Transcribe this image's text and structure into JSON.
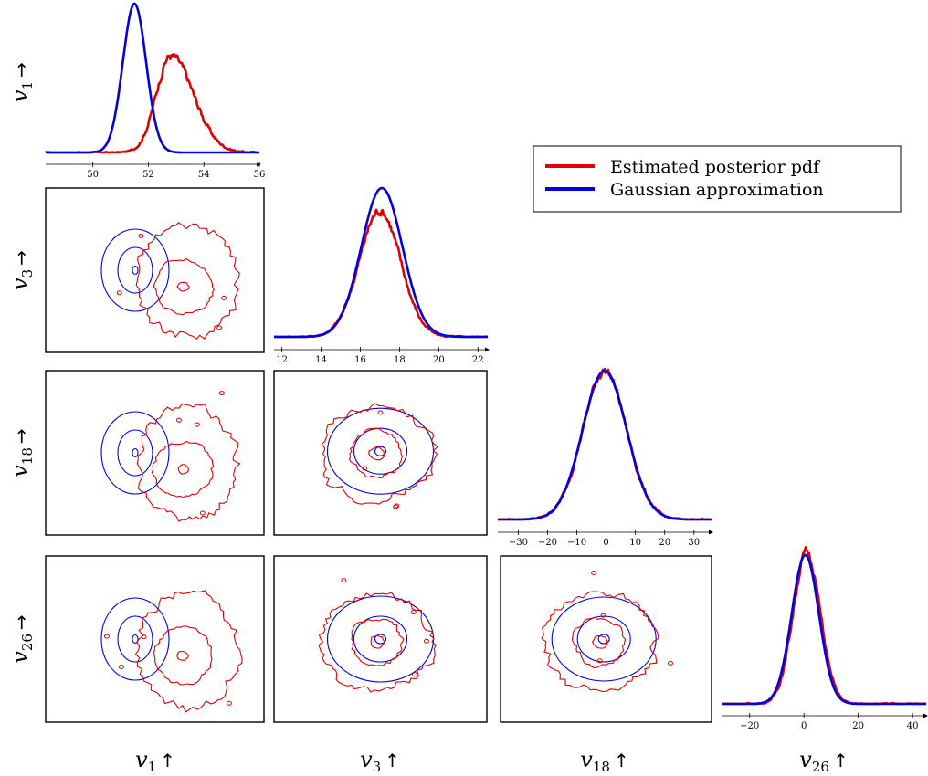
{
  "colors": {
    "estimated": "#e00000",
    "gaussian": "#0000e0",
    "axis": "#000000"
  },
  "legend": {
    "placement": "upper-right",
    "entries": [
      {
        "label": "Estimated posterior pdf",
        "color": "#e00000"
      },
      {
        "label": "Gaussian approximation",
        "color": "#0000e0"
      }
    ]
  },
  "chart_data": {
    "type": "corner-plot",
    "variables": [
      {
        "main": "v",
        "sub": "1",
        "arrow": "↑",
        "arrow_row": "→"
      },
      {
        "main": "v",
        "sub": "3",
        "arrow": "↑",
        "arrow_row": "→"
      },
      {
        "main": "v",
        "sub": "18",
        "arrow": "↑",
        "arrow_row": "→"
      },
      {
        "main": "v",
        "sub": "26",
        "arrow": "↑",
        "arrow_row": "→"
      }
    ],
    "marginals": [
      {
        "variable": "v1",
        "xlim": [
          48.3,
          56
        ],
        "ticks": [
          50,
          52,
          54,
          56
        ],
        "gaussian": {
          "mean": 51.5,
          "sd": 0.42
        },
        "estimated_mode": 52.8,
        "estimated_spread": [
          50.8,
          55.6
        ]
      },
      {
        "variable": "v3",
        "xlim": [
          11.6,
          22.5
        ],
        "ticks": [
          12,
          14,
          16,
          18,
          20,
          22
        ],
        "gaussian": {
          "mean": 17.1,
          "sd": 1.05
        },
        "estimated_mode": 17.0,
        "estimated_spread": [
          13.5,
          20.5
        ]
      },
      {
        "variable": "v18",
        "xlim": [
          -37,
          36
        ],
        "ticks": [
          -30,
          -20,
          -10,
          0,
          10,
          20,
          30
        ],
        "gaussian": {
          "mean": -0.5,
          "sd": 7.5
        },
        "estimated_mode": -0.5,
        "estimated_spread": [
          -25,
          25
        ]
      },
      {
        "variable": "v26",
        "xlim": [
          -30,
          45
        ],
        "ticks": [
          -20,
          0,
          20,
          40
        ],
        "gaussian": {
          "mean": 0.5,
          "sd": 5.0
        },
        "estimated_mode": 1.0,
        "estimated_spread": [
          -14,
          16
        ]
      }
    ],
    "pair_panels": [
      {
        "row": "v3",
        "col": "v1"
      },
      {
        "row": "v18",
        "col": "v1"
      },
      {
        "row": "v18",
        "col": "v3"
      },
      {
        "row": "v26",
        "col": "v1"
      },
      {
        "row": "v26",
        "col": "v3"
      },
      {
        "row": "v26",
        "col": "v18"
      }
    ]
  }
}
